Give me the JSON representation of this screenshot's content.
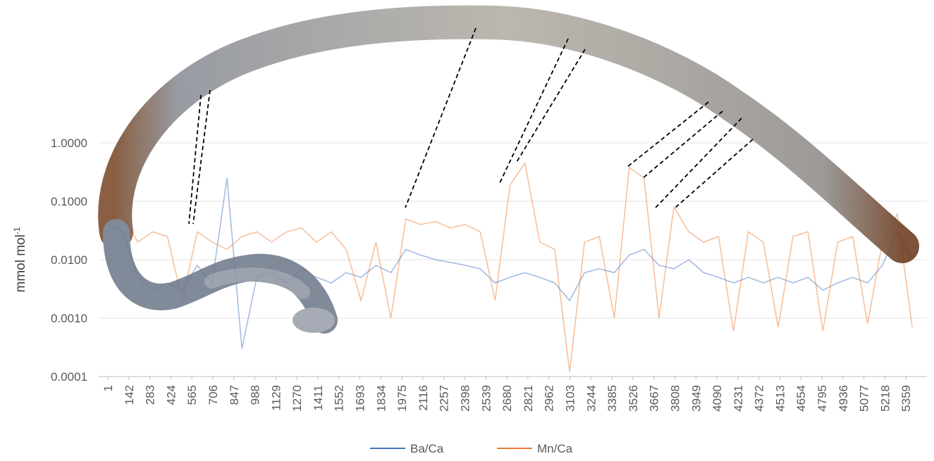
{
  "chart_data": {
    "type": "line",
    "ylabel": {
      "text": "mmol mol",
      "superscript": "-1"
    },
    "ylog": true,
    "ylim": [
      0.0001,
      1
    ],
    "yticks": [
      {
        "value": 0.0001,
        "label": "0.0001"
      },
      {
        "value": 0.001,
        "label": "0.0010"
      },
      {
        "value": 0.01,
        "label": "0.0100"
      },
      {
        "value": 0.1,
        "label": "0.1000"
      },
      {
        "value": 1,
        "label": "1.0000"
      }
    ],
    "xlim": [
      1,
      5500
    ],
    "xticks": [
      1,
      142,
      283,
      424,
      565,
      706,
      847,
      988,
      1129,
      1270,
      1411,
      1552,
      1693,
      1834,
      1975,
      2116,
      2257,
      2398,
      2539,
      2680,
      2821,
      2962,
      3103,
      3244,
      3385,
      3526,
      3667,
      3808,
      3949,
      4090,
      4231,
      4372,
      4513,
      4654,
      4795,
      4936,
      5077,
      5218,
      5359
    ],
    "grid": true,
    "legend": "bottom",
    "x": [
      1,
      101,
      201,
      301,
      401,
      501,
      601,
      701,
      801,
      901,
      1001,
      1101,
      1201,
      1301,
      1401,
      1501,
      1601,
      1701,
      1801,
      1901,
      2001,
      2101,
      2201,
      2301,
      2401,
      2501,
      2601,
      2701,
      2801,
      2901,
      3001,
      3101,
      3201,
      3301,
      3401,
      3501,
      3601,
      3701,
      3801,
      3901,
      4001,
      4101,
      4201,
      4301,
      4401,
      4501,
      4601,
      4701,
      4801,
      4901,
      5001,
      5101,
      5201,
      5301,
      5401
    ],
    "series": [
      {
        "name": "Ba/Ca",
        "color": "#4472c4",
        "values": [
          0.04,
          0.03,
          0.005,
          0.003,
          0.004,
          0.003,
          0.008,
          0.004,
          0.25,
          0.0003,
          0.005,
          0.006,
          0.004,
          0.007,
          0.005,
          0.004,
          0.006,
          0.005,
          0.008,
          0.006,
          0.015,
          0.012,
          0.01,
          0.009,
          0.008,
          0.007,
          0.004,
          0.005,
          0.006,
          0.005,
          0.004,
          0.002,
          0.006,
          0.007,
          0.006,
          0.012,
          0.015,
          0.008,
          0.007,
          0.01,
          0.006,
          0.005,
          0.004,
          0.005,
          0.004,
          0.005,
          0.004,
          0.005,
          0.003,
          0.004,
          0.005,
          0.004,
          0.008,
          0.03,
          0.01
        ]
      },
      {
        "name": "Mn/Ca",
        "color": "#ed7d31",
        "values": [
          0.05,
          0.06,
          0.02,
          0.03,
          0.025,
          0.002,
          0.03,
          0.02,
          0.015,
          0.025,
          0.03,
          0.02,
          0.03,
          0.035,
          0.02,
          0.03,
          0.015,
          0.002,
          0.02,
          0.001,
          0.05,
          0.04,
          0.045,
          0.035,
          0.04,
          0.03,
          0.002,
          0.19,
          0.45,
          0.02,
          0.015,
          0.00012,
          0.02,
          0.025,
          0.001,
          0.38,
          0.25,
          0.001,
          0.08,
          0.03,
          0.02,
          0.025,
          0.0006,
          0.03,
          0.02,
          0.0007,
          0.025,
          0.03,
          0.0006,
          0.02,
          0.025,
          0.0008,
          0.02,
          0.06,
          0.0007
        ]
      }
    ]
  }
}
